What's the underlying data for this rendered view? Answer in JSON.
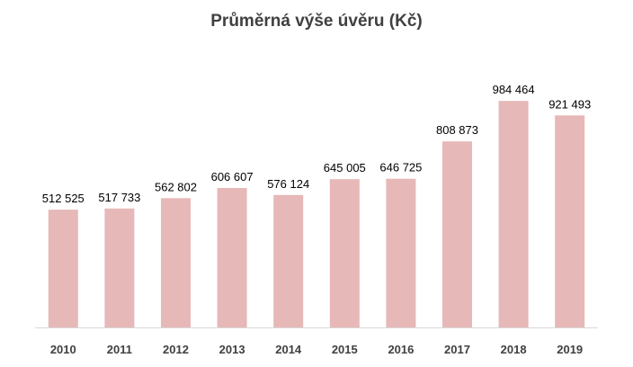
{
  "chart_data": {
    "type": "bar",
    "title": "Průměrná výše úvěru (Kč)",
    "categories": [
      "2010",
      "2011",
      "2012",
      "2013",
      "2014",
      "2015",
      "2016",
      "2017",
      "2018",
      "2019"
    ],
    "values": [
      512525,
      517733,
      562802,
      606607,
      576124,
      645005,
      646725,
      808873,
      984464,
      921493
    ],
    "value_labels": [
      "512 525",
      "517 733",
      "562 802",
      "606 607",
      "576 124",
      "645 005",
      "646 725",
      "808 873",
      "984 464",
      "921 493"
    ],
    "xlabel": "",
    "ylabel": "",
    "ylim": [
      0,
      1000000
    ],
    "grid": false,
    "legend": "none",
    "bar_color": "#e6b8b7",
    "axis_color": "#d9d9d9"
  }
}
